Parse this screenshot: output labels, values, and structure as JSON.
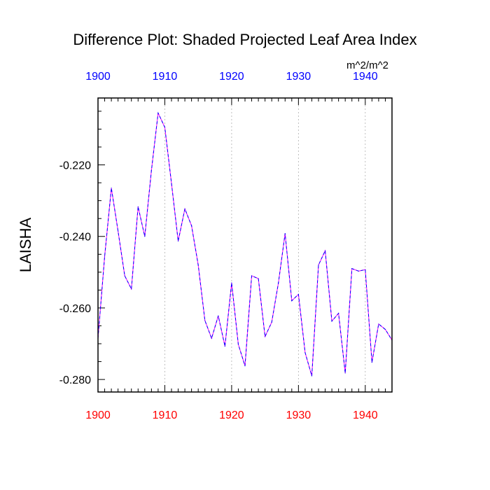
{
  "chart_data": {
    "type": "line",
    "title": "Difference Plot: Shaded Projected Leaf Area Index",
    "units": "m^2/m^2",
    "ylabel": "LAISHA",
    "xlabel": "",
    "xlim": [
      1900,
      1944
    ],
    "ylim": [
      -0.2835,
      -0.2013
    ],
    "x_ticks": [
      "1900",
      "1910",
      "1920",
      "1930",
      "1940"
    ],
    "x_tick_values": [
      1900,
      1910,
      1920,
      1930,
      1940
    ],
    "y_ticks": [
      "-0.220",
      "-0.240",
      "-0.260",
      "-0.280"
    ],
    "y_tick_values": [
      -0.22,
      -0.24,
      -0.26,
      -0.28
    ],
    "grid": "vertical dotted at major x ticks",
    "colors": {
      "top_axis_labels": "#0000ff",
      "bottom_axis_labels": "#ff0000",
      "line_dash": "#0000ff",
      "line_gap": "#ff00ff",
      "grid": "#b0b0b0"
    },
    "series": [
      {
        "name": "LAISHA",
        "x": [
          1900,
          1901,
          1902,
          1903,
          1904,
          1905,
          1906,
          1907,
          1908,
          1909,
          1910,
          1911,
          1912,
          1913,
          1914,
          1915,
          1916,
          1917,
          1918,
          1919,
          1920,
          1921,
          1922,
          1923,
          1924,
          1925,
          1926,
          1927,
          1928,
          1929,
          1930,
          1931,
          1932,
          1933,
          1934,
          1935,
          1936,
          1937,
          1938,
          1939,
          1940,
          1941,
          1942,
          1943,
          1944
        ],
        "values": [
          -0.2685,
          -0.2455,
          -0.2265,
          -0.2385,
          -0.251,
          -0.2547,
          -0.2317,
          -0.24,
          -0.2215,
          -0.2055,
          -0.2095,
          -0.2252,
          -0.2413,
          -0.2323,
          -0.237,
          -0.248,
          -0.2635,
          -0.2685,
          -0.2622,
          -0.2707,
          -0.253,
          -0.2702,
          -0.2762,
          -0.251,
          -0.2518,
          -0.268,
          -0.264,
          -0.253,
          -0.2392,
          -0.258,
          -0.2562,
          -0.2725,
          -0.279,
          -0.248,
          -0.244,
          -0.2637,
          -0.2615,
          -0.2782,
          -0.249,
          -0.2497,
          -0.2493,
          -0.2752,
          -0.2645,
          -0.266,
          -0.269
        ]
      }
    ]
  }
}
